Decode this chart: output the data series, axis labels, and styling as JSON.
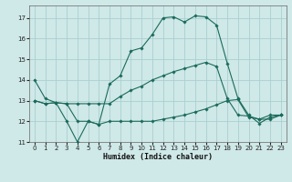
{
  "title": "",
  "xlabel": "Humidex (Indice chaleur)",
  "xlim": [
    -0.5,
    23.5
  ],
  "ylim": [
    11,
    17.6
  ],
  "yticks": [
    11,
    12,
    13,
    14,
    15,
    16,
    17
  ],
  "xticks": [
    0,
    1,
    2,
    3,
    4,
    5,
    6,
    7,
    8,
    9,
    10,
    11,
    12,
    13,
    14,
    15,
    16,
    17,
    18,
    19,
    20,
    21,
    22,
    23
  ],
  "bg_color": "#cfe8e8",
  "grid_color": "#aacfcf",
  "line_color": "#1a6b5a",
  "line1_x": [
    0,
    1,
    2,
    3,
    4,
    5,
    6,
    7,
    8,
    9,
    10,
    11,
    12,
    13,
    14,
    15,
    16,
    17,
    18,
    19,
    20,
    21,
    22,
    23
  ],
  "line1_y": [
    14.0,
    13.1,
    12.9,
    12.0,
    11.0,
    12.0,
    11.85,
    13.8,
    14.2,
    15.4,
    15.55,
    16.2,
    17.0,
    17.05,
    16.8,
    17.1,
    17.05,
    16.65,
    14.8,
    13.1,
    12.3,
    11.9,
    12.2,
    12.3
  ],
  "line2_x": [
    0,
    1,
    2,
    3,
    4,
    5,
    6,
    7,
    8,
    9,
    10,
    11,
    12,
    13,
    14,
    15,
    16,
    17,
    18,
    19,
    20,
    21,
    22,
    23
  ],
  "line2_y": [
    13.0,
    12.85,
    12.9,
    12.85,
    12.85,
    12.85,
    12.85,
    12.85,
    13.2,
    13.5,
    13.7,
    14.0,
    14.2,
    14.4,
    14.55,
    14.7,
    14.85,
    14.65,
    13.1,
    12.3,
    12.25,
    12.1,
    12.3,
    12.3
  ],
  "line3_x": [
    0,
    1,
    2,
    3,
    4,
    5,
    6,
    7,
    8,
    9,
    10,
    11,
    12,
    13,
    14,
    15,
    16,
    17,
    18,
    19,
    20,
    21,
    22,
    23
  ],
  "line3_y": [
    13.0,
    12.85,
    12.9,
    12.85,
    12.0,
    12.0,
    11.85,
    12.0,
    12.0,
    12.0,
    12.0,
    12.0,
    12.1,
    12.2,
    12.3,
    12.45,
    12.6,
    12.8,
    13.0,
    13.05,
    12.2,
    12.1,
    12.1,
    12.3
  ]
}
